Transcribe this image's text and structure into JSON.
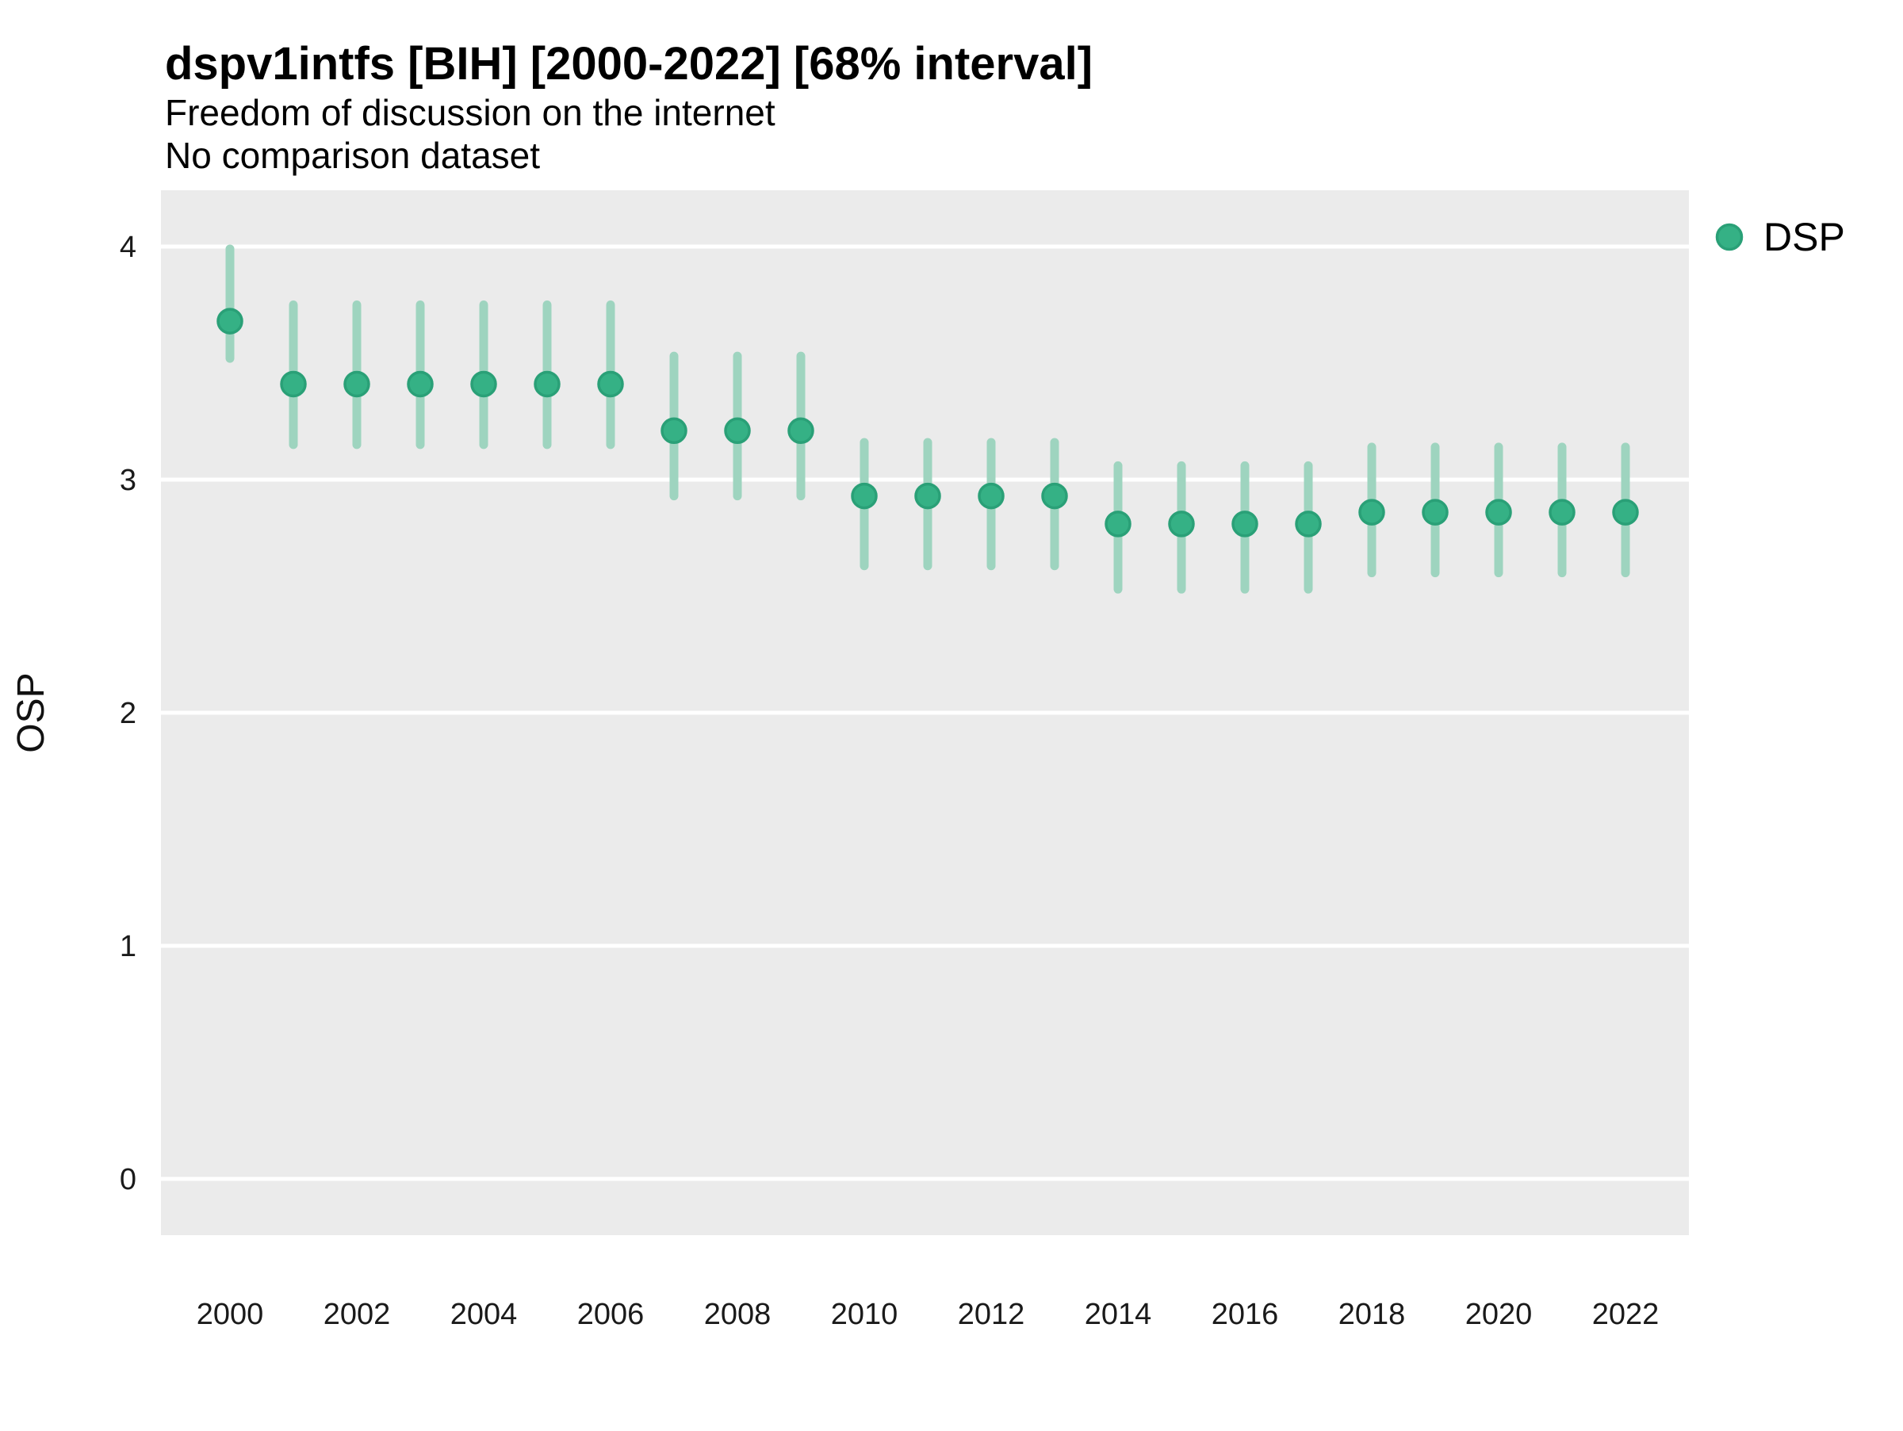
{
  "chart_data": {
    "type": "pointrange",
    "title": "dspv1intfs [BIH] [2000-2022] [68% interval]",
    "subtitle1": "Freedom of discussion on the internet",
    "subtitle2": "No comparison dataset",
    "xlabel": "",
    "ylabel": "OSP",
    "interval_level": "68%",
    "country_code": "BIH",
    "x": [
      2000,
      2001,
      2002,
      2003,
      2004,
      2005,
      2006,
      2007,
      2008,
      2009,
      2010,
      2011,
      2012,
      2013,
      2014,
      2015,
      2016,
      2017,
      2018,
      2019,
      2020,
      2021,
      2022
    ],
    "series": [
      {
        "name": "DSP",
        "estimates": [
          3.68,
          3.41,
          3.41,
          3.41,
          3.41,
          3.41,
          3.41,
          3.21,
          3.21,
          3.21,
          2.93,
          2.93,
          2.93,
          2.93,
          2.81,
          2.81,
          2.81,
          2.81,
          2.86,
          2.86,
          2.86,
          2.86,
          2.86
        ],
        "lower_68": [
          3.52,
          3.15,
          3.15,
          3.15,
          3.15,
          3.15,
          3.15,
          2.93,
          2.93,
          2.93,
          2.63,
          2.63,
          2.63,
          2.63,
          2.53,
          2.53,
          2.53,
          2.53,
          2.6,
          2.6,
          2.6,
          2.6,
          2.6
        ],
        "upper_68": [
          3.99,
          3.75,
          3.75,
          3.75,
          3.75,
          3.75,
          3.75,
          3.53,
          3.53,
          3.53,
          3.16,
          3.16,
          3.16,
          3.16,
          3.06,
          3.06,
          3.06,
          3.06,
          3.14,
          3.14,
          3.14,
          3.14,
          3.14
        ]
      }
    ],
    "yticks": [
      0,
      1,
      2,
      3,
      4
    ],
    "xticks": [
      2000,
      2002,
      2004,
      2006,
      2008,
      2010,
      2012,
      2014,
      2016,
      2018,
      2020,
      2022
    ],
    "ylim": [
      -0.24,
      4.24
    ],
    "grid": "major-horizontal-only",
    "legend_position": "right-top",
    "colors": {
      "point_fill": "#35b185",
      "point_stroke": "#2aa077",
      "whisker": "#9ed4bf",
      "plot_background": "#ebebeb",
      "gridline": "#ffffff",
      "figure_background": "#ffffff"
    }
  }
}
